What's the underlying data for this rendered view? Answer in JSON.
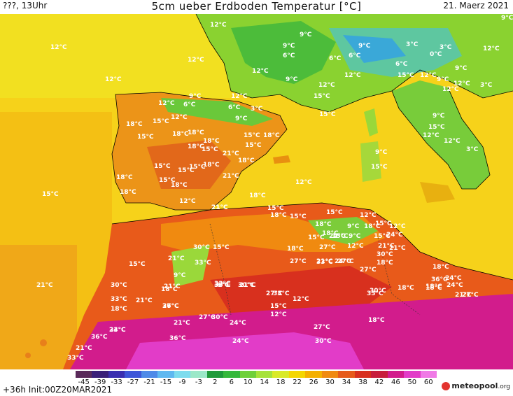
{
  "header": {
    "left": "???, 13Uhr",
    "title": "5cm ueber Erdboden Temperatur [°C]",
    "date": "21. Maerz 2021"
  },
  "footer": {
    "forecast": "+36h Init:00Z20MAR2021",
    "brand": "meteopool",
    "brand_suffix": ".org"
  },
  "colorbar": {
    "ticks": [
      "-45",
      "-39",
      "-33",
      "-27",
      "-21",
      "-15",
      "-9",
      "-3",
      "2",
      "6",
      "10",
      "14",
      "18",
      "22",
      "26",
      "30",
      "34",
      "38",
      "42",
      "46",
      "50",
      "60"
    ],
    "colors": [
      "#5a2a5a",
      "#3a1f78",
      "#3a2fb0",
      "#3d56d8",
      "#4e8ae8",
      "#5fb8f0",
      "#7ddcee",
      "#9be8c8",
      "#1f9a3a",
      "#35b83c",
      "#6fd03a",
      "#a6e23a",
      "#d9ea28",
      "#f4d600",
      "#f4b000",
      "#f08a10",
      "#e65a1a",
      "#d8301e",
      "#c81e3c",
      "#d21c8c",
      "#e23cc8",
      "#f07ae6"
    ]
  },
  "labels": [
    {
      "t": "12°C"
    },
    {
      "t": "12°C"
    },
    {
      "t": "12°C"
    },
    {
      "t": "12°C"
    },
    {
      "t": "12°C"
    },
    {
      "t": "9°C"
    },
    {
      "t": "9°C"
    },
    {
      "t": "6°C"
    },
    {
      "t": "6°C"
    },
    {
      "t": "3°C"
    },
    {
      "t": "3°C"
    },
    {
      "t": "0°C"
    },
    {
      "t": "6°C"
    },
    {
      "t": "12°C"
    },
    {
      "t": "9°C"
    },
    {
      "t": "15°C"
    },
    {
      "t": "12°C"
    },
    {
      "t": "9°C"
    },
    {
      "t": "9°C"
    },
    {
      "t": "12°C"
    },
    {
      "t": "12°C"
    },
    {
      "t": "6°C"
    },
    {
      "t": "9°C"
    },
    {
      "t": "12°C"
    },
    {
      "t": "9°C"
    },
    {
      "t": "3°C"
    },
    {
      "t": "9°C"
    },
    {
      "t": "6°C"
    },
    {
      "t": "12°C"
    },
    {
      "t": "6°C"
    },
    {
      "t": "9°C"
    },
    {
      "t": "3°C"
    },
    {
      "t": "12°C"
    },
    {
      "t": "15°C"
    },
    {
      "t": "12°C"
    },
    {
      "t": "15°C"
    },
    {
      "t": "18°C"
    },
    {
      "t": "15°C"
    },
    {
      "t": "12°C"
    },
    {
      "t": "18°C"
    },
    {
      "t": "18°C"
    },
    {
      "t": "15°C"
    },
    {
      "t": "18°C"
    },
    {
      "t": "21°C"
    },
    {
      "t": "15°C"
    },
    {
      "t": "18°C"
    },
    {
      "t": "9°C"
    },
    {
      "t": "12°C"
    },
    {
      "t": "15°C"
    },
    {
      "t": "12°C"
    },
    {
      "t": "3°C"
    },
    {
      "t": "15°C"
    },
    {
      "t": "18°C"
    },
    {
      "t": "15°C"
    },
    {
      "t": "18°C"
    },
    {
      "t": "15°C"
    },
    {
      "t": "18°C"
    },
    {
      "t": "21°C"
    },
    {
      "t": "18°C"
    },
    {
      "t": "15°C"
    },
    {
      "t": "18°C"
    },
    {
      "t": "21°C"
    },
    {
      "t": "15°C"
    },
    {
      "t": "15°C"
    },
    {
      "t": "18°C"
    },
    {
      "t": "12°C"
    },
    {
      "t": "9°C"
    },
    {
      "t": "15°C"
    },
    {
      "t": "15°C"
    },
    {
      "t": "12°C"
    },
    {
      "t": "15°C"
    },
    {
      "t": "18°C"
    },
    {
      "t": "15°C"
    },
    {
      "t": "21°C"
    },
    {
      "t": "18°C"
    },
    {
      "t": "18°C"
    },
    {
      "t": "15°C"
    },
    {
      "t": "12°C"
    },
    {
      "t": "15°C"
    },
    {
      "t": "9°C"
    },
    {
      "t": "12°C"
    },
    {
      "t": "18°C"
    },
    {
      "t": "24°C"
    },
    {
      "t": "15°C"
    },
    {
      "t": "15°C"
    },
    {
      "t": "18°C"
    },
    {
      "t": "15°C"
    },
    {
      "t": "18°C"
    },
    {
      "t": "27°C"
    },
    {
      "t": "24°C"
    },
    {
      "t": "9°C"
    },
    {
      "t": "12°C"
    },
    {
      "t": "15°C"
    },
    {
      "t": "21°C"
    },
    {
      "t": "30°C"
    },
    {
      "t": "27°C"
    },
    {
      "t": "21°C"
    },
    {
      "t": "18°C"
    },
    {
      "t": "15°C"
    },
    {
      "t": "21°C"
    },
    {
      "t": "21°C"
    },
    {
      "t": "30°C"
    },
    {
      "t": "27°C"
    },
    {
      "t": "33°C"
    },
    {
      "t": "24°C"
    },
    {
      "t": "27°C"
    },
    {
      "t": "21°C"
    },
    {
      "t": "18°C"
    },
    {
      "t": "24°C"
    },
    {
      "t": "21°C"
    },
    {
      "t": "12°C"
    },
    {
      "t": "6°C"
    },
    {
      "t": "9°C"
    },
    {
      "t": "33°C"
    },
    {
      "t": "21°C"
    },
    {
      "t": "18°C"
    },
    {
      "t": "33°C"
    },
    {
      "t": "30°C"
    },
    {
      "t": "36°C"
    },
    {
      "t": "27°C"
    },
    {
      "t": "33°C"
    },
    {
      "t": "36°C"
    },
    {
      "t": "18°C"
    },
    {
      "t": "18°C"
    },
    {
      "t": "24°C"
    },
    {
      "t": "18°C"
    },
    {
      "t": "27°C"
    },
    {
      "t": "30°C"
    },
    {
      "t": "33°C"
    },
    {
      "t": "21°C"
    },
    {
      "t": "18°C"
    },
    {
      "t": "24°C"
    },
    {
      "t": "27°C"
    },
    {
      "t": "36°C"
    },
    {
      "t": "21°C"
    },
    {
      "t": "15°C"
    },
    {
      "t": "12°C"
    },
    {
      "t": "30°C"
    },
    {
      "t": "33°C"
    },
    {
      "t": "30°C"
    },
    {
      "t": "24°C"
    },
    {
      "t": "27°C"
    },
    {
      "t": "18°C"
    },
    {
      "t": "33°C"
    },
    {
      "t": "36°C"
    },
    {
      "t": "21°C"
    },
    {
      "t": "27°C"
    },
    {
      "t": "24°C"
    },
    {
      "t": "30°C"
    },
    {
      "t": "21°C"
    },
    {
      "t": "33°C"
    },
    {
      "t": "36°C"
    }
  ]
}
